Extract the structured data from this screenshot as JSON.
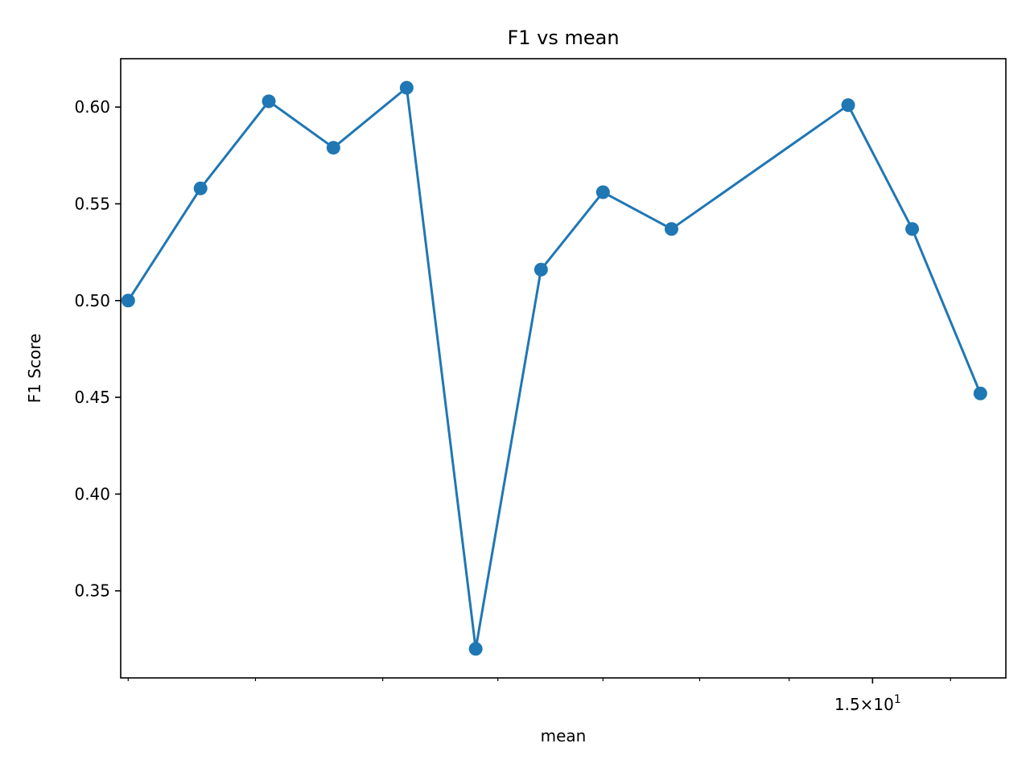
{
  "chart_data": {
    "type": "line",
    "title": "F1 vs mean",
    "xlabel": "mean",
    "ylabel": "F1 Score",
    "xscale": "log",
    "x": [
      8.1,
      8.6,
      9.1,
      9.6,
      10.2,
      10.8,
      11.3,
      11.9,
      12.6,
      13.3,
      14.1,
      14.9,
      15.7,
      16.5
    ],
    "series": [
      {
        "values": [
          0.5,
          0.558,
          0.603,
          0.579,
          0.61,
          0.32,
          0.516,
          0.556,
          0.537,
          0.601,
          0.537,
          0.452
        ],
        "x": [
          8.1,
          8.6,
          9.1,
          9.6,
          10.2,
          10.8,
          11.4,
          12.0,
          12.7,
          14.7,
          15.5,
          16.4
        ],
        "color": "#1f77b4"
      }
    ],
    "xlim": [
      8.05,
      16.75
    ],
    "ylim": [
      0.305,
      0.625
    ],
    "yticks": [
      0.35,
      0.4,
      0.45,
      0.5,
      0.55,
      0.6
    ],
    "ytick_labels": [
      "0.35",
      "0.40",
      "0.45",
      "0.50",
      "0.55",
      "0.60"
    ],
    "xtick_major": [
      15
    ],
    "xtick_major_labels": [
      "1.5×10"
    ],
    "xtick_major_exponent": "1",
    "xtick_minor": [
      8.1,
      9,
      10,
      11,
      12,
      13,
      14,
      16
    ],
    "grid": false,
    "legend": "none"
  }
}
